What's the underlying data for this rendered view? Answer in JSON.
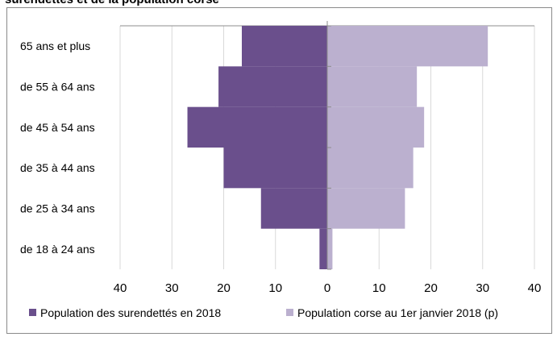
{
  "title": "surendettés et de la population corse",
  "chart_data": {
    "type": "bar",
    "orientation": "horizontal-pyramid",
    "categories": [
      "65 ans et plus",
      "de 55 à 64 ans",
      "de 45 à 54 ans",
      "de 35 à 44 ans",
      "de 25 à 34 ans",
      "de 18 à 24 ans"
    ],
    "series": [
      {
        "name": "Population des surendettés en 2018",
        "color": "#6a4f8c",
        "side": "left",
        "values": [
          16.5,
          21,
          27,
          20,
          12.8,
          1.5
        ]
      },
      {
        "name": "Population corse au 1er janvier 2018 (p)",
        "color": "#bbb0cf",
        "side": "right",
        "values": [
          31,
          17.3,
          18.7,
          16.6,
          15,
          1
        ]
      }
    ],
    "x_ticks": [
      "40",
      "30",
      "20",
      "10",
      "0",
      "10",
      "20",
      "30",
      "40"
    ],
    "xlim": [
      -40,
      40
    ],
    "grid": true,
    "legend_position": "bottom"
  }
}
